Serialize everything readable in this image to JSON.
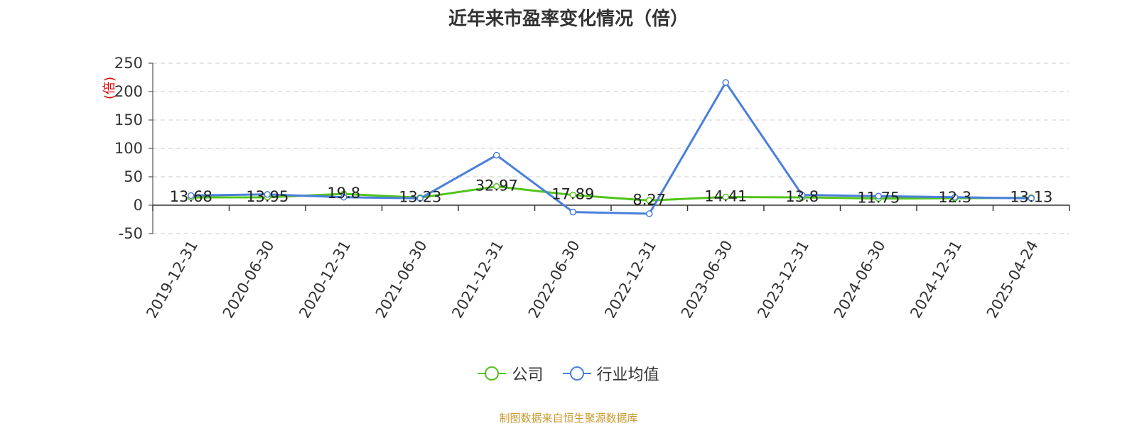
{
  "chart_data": {
    "type": "line",
    "title": "近年来市盈率变化情况（倍）",
    "ylabel": "(倍)",
    "ylim": [
      -50,
      250
    ],
    "yticks": [
      -50,
      0,
      50,
      100,
      150,
      200,
      250
    ],
    "grid": true,
    "legend_position": "bottom",
    "categories": [
      "2019-12-31",
      "2020-06-30",
      "2020-12-31",
      "2021-06-30",
      "2021-12-31",
      "2022-06-30",
      "2022-12-31",
      "2023-06-30",
      "2023-12-31",
      "2024-06-30",
      "2024-12-31",
      "2025-04-24"
    ],
    "series": [
      {
        "name": "公司",
        "color": "#52c41a",
        "values": [
          13.68,
          13.95,
          19.8,
          13.23,
          32.97,
          17.89,
          8.27,
          14.41,
          13.8,
          11.75,
          12.3,
          13.13
        ],
        "labels": [
          "13.68",
          "13.95",
          "19.8",
          "13.23",
          "32.97",
          "17.89",
          "8.27",
          "14.41",
          "13.8",
          "11.75",
          "12.3",
          "13.13"
        ]
      },
      {
        "name": "行业均值",
        "color": "#4a7fdc",
        "values": [
          17,
          19,
          14,
          12,
          88,
          -12,
          -15,
          216,
          18,
          16,
          14,
          12
        ]
      }
    ]
  },
  "footer": {
    "source": "制图数据来自恒生聚源数据库"
  }
}
